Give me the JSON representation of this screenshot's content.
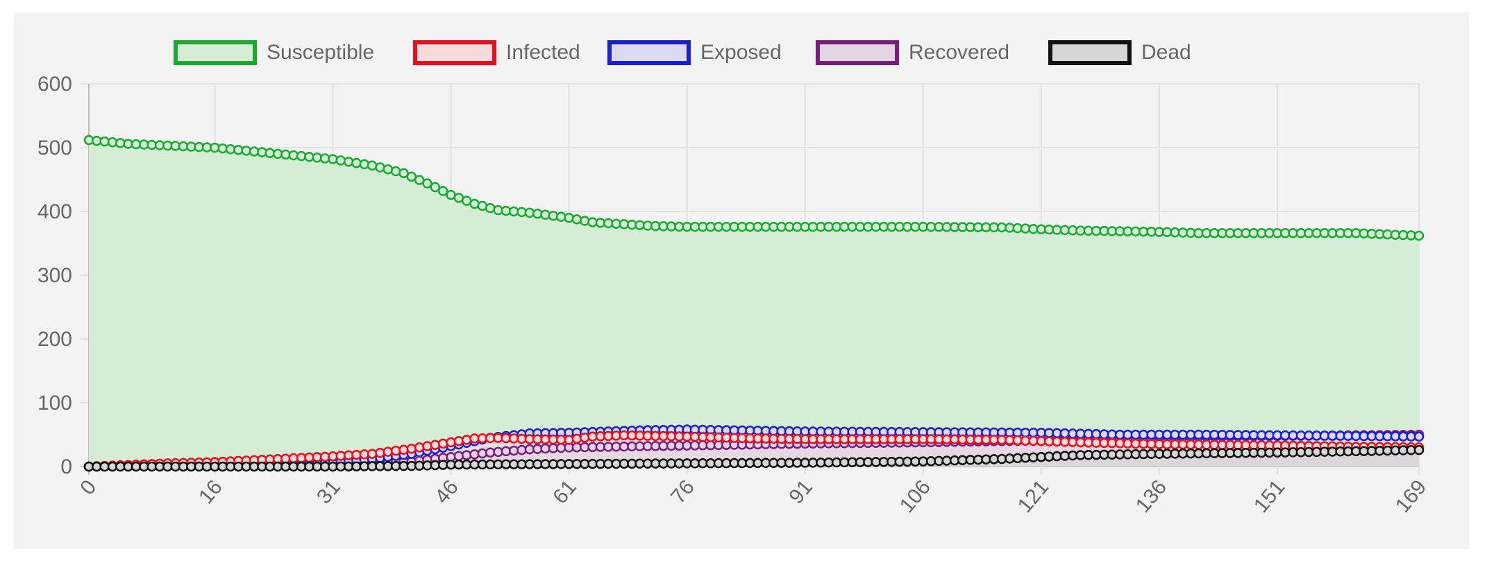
{
  "chart_data": {
    "type": "line",
    "title": "",
    "xlabel": "",
    "ylabel": "",
    "x_ticks": [
      0,
      16,
      31,
      46,
      61,
      76,
      91,
      106,
      121,
      136,
      151,
      169
    ],
    "y_ticks": [
      0,
      100,
      200,
      300,
      400,
      500,
      600
    ],
    "xlim": [
      0,
      169
    ],
    "ylim": [
      0,
      600
    ],
    "grid": true,
    "legend_position": "top",
    "series": [
      {
        "name": "Susceptible",
        "color": "#1aaa34",
        "fill": "#d5ecd5",
        "keypoints": [
          [
            0,
            512
          ],
          [
            5,
            506
          ],
          [
            16,
            500
          ],
          [
            26,
            488
          ],
          [
            31,
            482
          ],
          [
            36,
            472
          ],
          [
            40,
            460
          ],
          [
            43,
            444
          ],
          [
            46,
            426
          ],
          [
            49,
            412
          ],
          [
            52,
            402
          ],
          [
            56,
            398
          ],
          [
            61,
            390
          ],
          [
            64,
            383
          ],
          [
            68,
            380
          ],
          [
            72,
            377
          ],
          [
            76,
            376
          ],
          [
            91,
            376
          ],
          [
            106,
            376
          ],
          [
            116,
            375
          ],
          [
            121,
            372
          ],
          [
            126,
            370
          ],
          [
            136,
            368
          ],
          [
            141,
            366
          ],
          [
            151,
            366
          ],
          [
            161,
            366
          ],
          [
            169,
            362
          ]
        ]
      },
      {
        "name": "Infected",
        "color": "#e8101f",
        "fill": "#f7dada",
        "keypoints": [
          [
            0,
            0
          ],
          [
            10,
            5
          ],
          [
            16,
            7
          ],
          [
            26,
            13
          ],
          [
            31,
            16
          ],
          [
            36,
            20
          ],
          [
            41,
            28
          ],
          [
            46,
            38
          ],
          [
            49,
            44
          ],
          [
            52,
            45
          ],
          [
            56,
            43
          ],
          [
            61,
            42
          ],
          [
            64,
            47
          ],
          [
            68,
            49
          ],
          [
            76,
            47
          ],
          [
            85,
            44
          ],
          [
            91,
            43
          ],
          [
            106,
            43
          ],
          [
            116,
            42
          ],
          [
            121,
            40
          ],
          [
            126,
            38
          ],
          [
            136,
            35
          ],
          [
            151,
            33
          ],
          [
            161,
            31
          ],
          [
            169,
            30
          ]
        ]
      },
      {
        "name": "Exposed",
        "color": "#1c1ed2",
        "fill": "#dadbf3",
        "keypoints": [
          [
            0,
            0
          ],
          [
            16,
            2
          ],
          [
            26,
            4
          ],
          [
            31,
            6
          ],
          [
            36,
            12
          ],
          [
            41,
            20
          ],
          [
            46,
            32
          ],
          [
            51,
            45
          ],
          [
            56,
            52
          ],
          [
            61,
            53
          ],
          [
            66,
            55
          ],
          [
            71,
            57
          ],
          [
            76,
            58
          ],
          [
            81,
            57
          ],
          [
            91,
            55
          ],
          [
            106,
            54
          ],
          [
            121,
            53
          ],
          [
            131,
            50
          ],
          [
            141,
            50
          ],
          [
            151,
            49
          ],
          [
            161,
            48
          ],
          [
            169,
            47
          ]
        ]
      },
      {
        "name": "Recovered",
        "color": "#7a1d7b",
        "fill": "#e4d5e5",
        "keypoints": [
          [
            0,
            0
          ],
          [
            16,
            1
          ],
          [
            31,
            3
          ],
          [
            41,
            8
          ],
          [
            46,
            15
          ],
          [
            51,
            22
          ],
          [
            56,
            27
          ],
          [
            61,
            30
          ],
          [
            76,
            33
          ],
          [
            91,
            36
          ],
          [
            106,
            38
          ],
          [
            121,
            41
          ],
          [
            131,
            44
          ],
          [
            136,
            46
          ],
          [
            151,
            48
          ],
          [
            161,
            49
          ],
          [
            169,
            50
          ]
        ]
      },
      {
        "name": "Dead",
        "color": "#111111",
        "fill": "#d6d6d6",
        "keypoints": [
          [
            0,
            0
          ],
          [
            31,
            0
          ],
          [
            41,
            1
          ],
          [
            46,
            3
          ],
          [
            61,
            4
          ],
          [
            76,
            5
          ],
          [
            91,
            6
          ],
          [
            106,
            8
          ],
          [
            116,
            12
          ],
          [
            121,
            15
          ],
          [
            126,
            18
          ],
          [
            136,
            20
          ],
          [
            151,
            22
          ],
          [
            161,
            24
          ],
          [
            169,
            26
          ]
        ]
      }
    ]
  }
}
